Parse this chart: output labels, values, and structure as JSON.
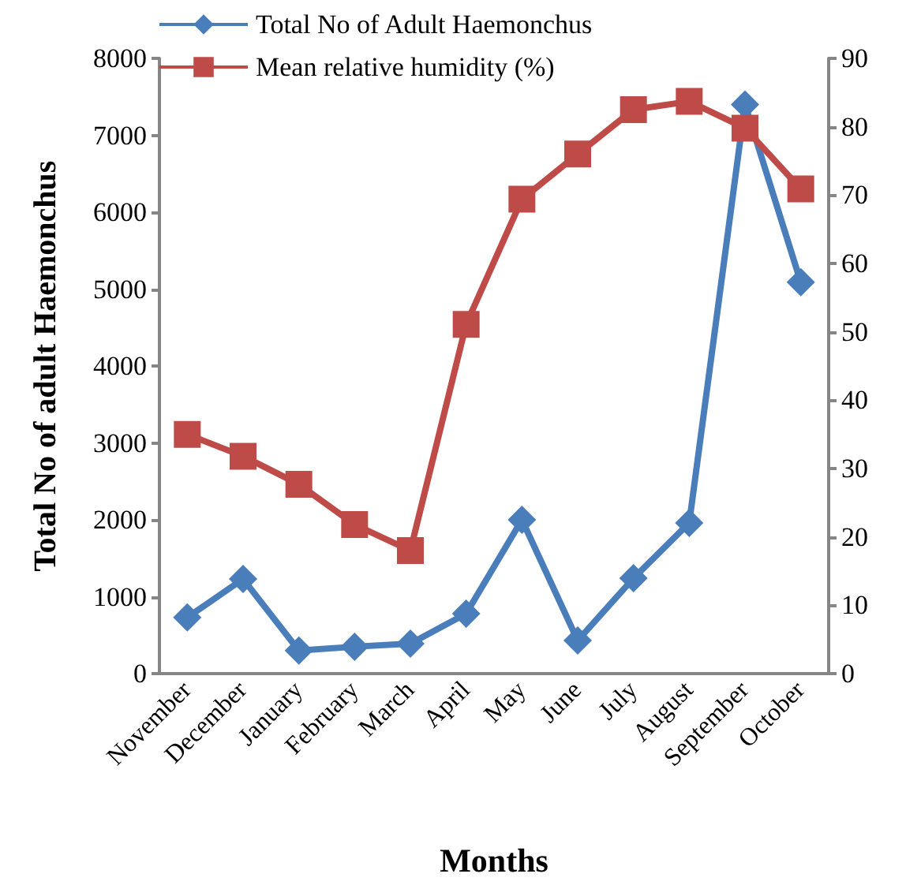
{
  "chart_data": {
    "type": "line",
    "xlabel": "Months",
    "ylabel": "Total No of adult Haemonchus",
    "categories": [
      "November",
      "December",
      "January",
      "February",
      "March",
      "April",
      "May",
      "June",
      "July",
      "August",
      "September",
      "October"
    ],
    "series": [
      {
        "name": "Total No of Adult Haemonchus",
        "color": "#4a7ebb",
        "marker": "diamond",
        "values": [
          730,
          1230,
          300,
          350,
          390,
          780,
          2000,
          430,
          1240,
          1960,
          7400,
          5090
        ]
      },
      {
        "name": "Mean relative humidity (%)",
        "color": "#be4b48",
        "marker": "square",
        "axis": "y2",
        "values": [
          35,
          31.8,
          27.7,
          21.8,
          18,
          51.1,
          69.4,
          76,
          82.5,
          83.7,
          79.8,
          70.9
        ]
      }
    ],
    "ylim": [
      0,
      8000
    ],
    "yticks": [
      0,
      1000,
      2000,
      3000,
      4000,
      5000,
      6000,
      7000,
      8000
    ],
    "y2lim": [
      0,
      90
    ],
    "y2ticks": [
      0,
      10,
      20,
      30,
      40,
      50,
      60,
      70,
      80,
      90
    ],
    "grid": false,
    "legend": "top left",
    "line_style": "solid"
  }
}
